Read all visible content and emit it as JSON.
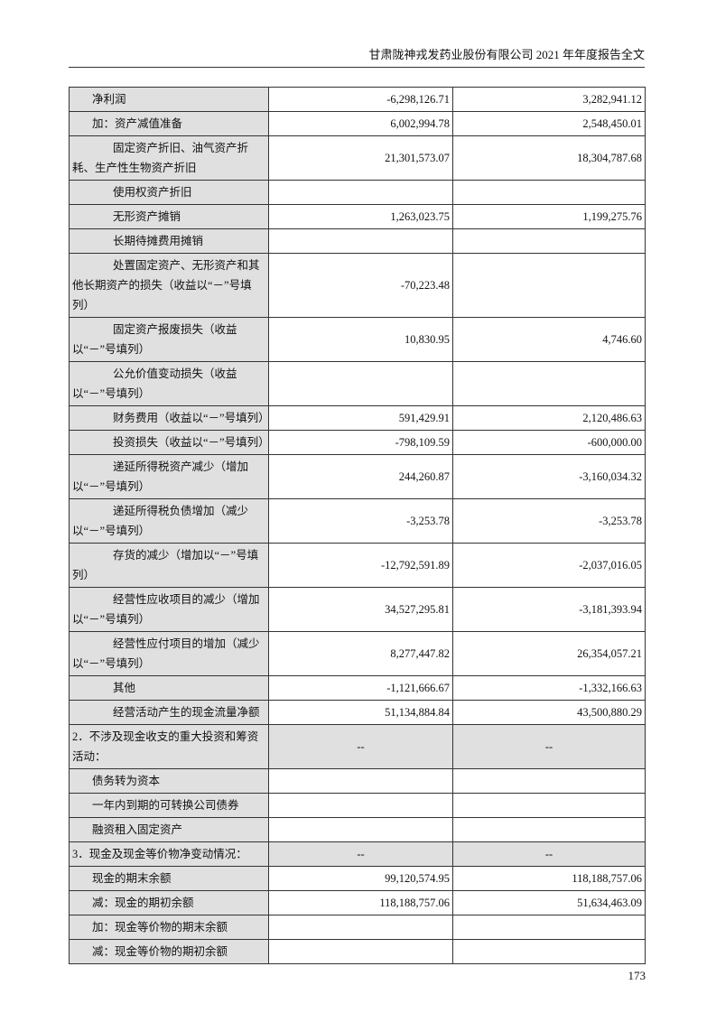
{
  "header": {
    "title": "甘肃陇神戎发药业股份有限公司 2021 年年度报告全文"
  },
  "table": {
    "rows": [
      {
        "label": "净利润",
        "level": 1,
        "v1": "-6,298,126.71",
        "v2": "3,282,941.12"
      },
      {
        "label": "加：资产减值准备",
        "level": 1,
        "v1": "6,002,994.78",
        "v2": "2,548,450.01"
      },
      {
        "label": "固定资产折旧、油气资产折耗、生产性生物资产折旧",
        "level": 2,
        "v1": "21,301,573.07",
        "v2": "18,304,787.68"
      },
      {
        "label": "使用权资产折旧",
        "level": 2,
        "v1": "",
        "v2": ""
      },
      {
        "label": "无形资产摊销",
        "level": 2,
        "v1": "1,263,023.75",
        "v2": "1,199,275.76"
      },
      {
        "label": "长期待摊费用摊销",
        "level": 2,
        "v1": "",
        "v2": ""
      },
      {
        "label": "处置固定资产、无形资产和其他长期资产的损失（收益以“－”号填列）",
        "level": 2,
        "v1": "-70,223.48",
        "v2": ""
      },
      {
        "label": "固定资产报废损失（收益以“－”号填列）",
        "level": 2,
        "v1": "10,830.95",
        "v2": "4,746.60"
      },
      {
        "label": "公允价值变动损失（收益以“－”号填列）",
        "level": 2,
        "v1": "",
        "v2": ""
      },
      {
        "label": "财务费用（收益以“－”号填列）",
        "level": 2,
        "v1": "591,429.91",
        "v2": "2,120,486.63"
      },
      {
        "label": "投资损失（收益以“－”号填列）",
        "level": 2,
        "v1": "-798,109.59",
        "v2": "-600,000.00"
      },
      {
        "label": "递延所得税资产减少（增加以“－”号填列）",
        "level": 2,
        "v1": "244,260.87",
        "v2": "-3,160,034.32"
      },
      {
        "label": "递延所得税负债增加（减少以“－”号填列）",
        "level": 2,
        "v1": "-3,253.78",
        "v2": "-3,253.78"
      },
      {
        "label": "存货的减少（增加以“－”号填列）",
        "level": 2,
        "v1": "-12,792,591.89",
        "v2": "-2,037,016.05"
      },
      {
        "label": "经营性应收项目的减少（增加以“－”号填列）",
        "level": 2,
        "v1": "34,527,295.81",
        "v2": "-3,181,393.94"
      },
      {
        "label": "经营性应付项目的增加（减少以“－”号填列）",
        "level": 2,
        "v1": "8,277,447.82",
        "v2": "26,354,057.21"
      },
      {
        "label": "其他",
        "level": 2,
        "v1": "-1,121,666.67",
        "v2": "-1,332,166.63"
      },
      {
        "label": "经营活动产生的现金流量净额",
        "level": 2,
        "v1": "51,134,884.84",
        "v2": "43,500,880.29"
      },
      {
        "label": "2．不涉及现金收支的重大投资和筹资活动：",
        "level": 0,
        "v1": "--",
        "v2": "--",
        "section": true
      },
      {
        "label": "债务转为资本",
        "level": 1,
        "v1": "",
        "v2": ""
      },
      {
        "label": "一年内到期的可转换公司债券",
        "level": 1,
        "v1": "",
        "v2": ""
      },
      {
        "label": "融资租入固定资产",
        "level": 1,
        "v1": "",
        "v2": ""
      },
      {
        "label": "3．现金及现金等价物净变动情况：",
        "level": 0,
        "v1": "--",
        "v2": "--",
        "section": true
      },
      {
        "label": "现金的期末余额",
        "level": 1,
        "v1": "99,120,574.95",
        "v2": "118,188,757.06"
      },
      {
        "label": "减：现金的期初余额",
        "level": 1,
        "v1": "118,188,757.06",
        "v2": "51,634,463.09"
      },
      {
        "label": "加：现金等价物的期末余额",
        "level": 1,
        "v1": "",
        "v2": ""
      },
      {
        "label": "减：现金等价物的期初余额",
        "level": 1,
        "v1": "",
        "v2": ""
      }
    ]
  },
  "footer": {
    "page_number": "173"
  }
}
